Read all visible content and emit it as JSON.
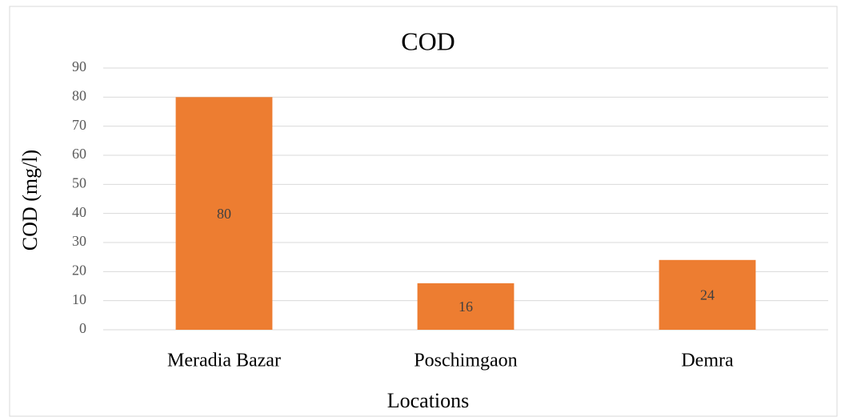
{
  "chart_data": {
    "type": "bar",
    "title": "COD",
    "x_label": "Locations",
    "y_label": "COD (mg/l)",
    "categories": [
      "Meradia Bazar",
      "Poschimgaon",
      "Demra"
    ],
    "values": [
      80,
      16,
      24
    ],
    "color": "#ed7d31",
    "ylim": [
      0,
      90
    ],
    "yticks": [
      0,
      10,
      20,
      30,
      40,
      50,
      60,
      70,
      80,
      90
    ],
    "grid": true,
    "data_labels": true
  }
}
